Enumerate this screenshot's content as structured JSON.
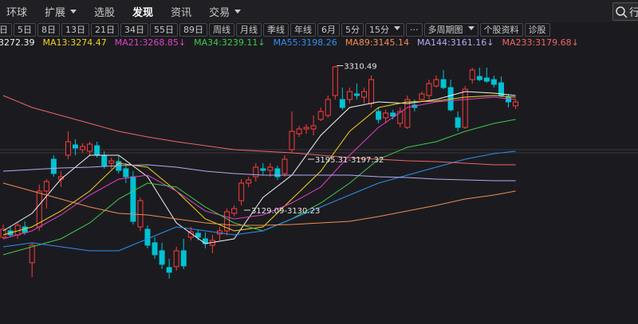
{
  "nav": {
    "items": [
      {
        "label": "环球"
      },
      {
        "label": "扩展",
        "dropdown": true
      },
      {
        "label": "选股"
      },
      {
        "label": "发现",
        "active": true
      },
      {
        "label": "资讯"
      },
      {
        "label": "交易",
        "dropdown": true
      }
    ],
    "search": "行"
  },
  "toolbar": [
    {
      "label": "日"
    },
    {
      "label": "5日"
    },
    {
      "label": "8日"
    },
    {
      "label": "13日"
    },
    {
      "label": "21日"
    },
    {
      "label": "34日"
    },
    {
      "label": "55日"
    },
    {
      "label": "89日"
    },
    {
      "label": "周线"
    },
    {
      "label": "月线"
    },
    {
      "label": "季线"
    },
    {
      "label": "年线"
    },
    {
      "label": "6月"
    },
    {
      "label": "5分"
    },
    {
      "label": "15分",
      "dropdown": true
    },
    {
      "label": "···"
    },
    {
      "label": "多周期图",
      "dropdown": true
    },
    {
      "label": "个股资料"
    },
    {
      "label": "诊股"
    }
  ],
  "chart_data": {
    "type": "candlestick",
    "ylim": [
      2986,
      3329
    ],
    "up_color": "#ff3b3b",
    "down_color": "#00c2d4",
    "open": [
      3095,
      3103,
      3098,
      3108,
      3063,
      3108,
      3153,
      3193,
      3168,
      3198,
      3211,
      3205,
      3203,
      3210,
      3197,
      3188,
      3190,
      3181,
      3171,
      3108,
      3105,
      3088,
      3078,
      3057,
      3058,
      3078,
      3095,
      3100,
      3093,
      3085,
      3099,
      3103,
      3125,
      3141,
      3163,
      3171,
      3181,
      3179,
      3181,
      3175,
      3205,
      3225,
      3231,
      3231,
      3243,
      3248,
      3273,
      3268,
      3268,
      3275,
      3271,
      3263,
      3253,
      3245,
      3251,
      3238,
      3233,
      3261,
      3268,
      3273,
      3285,
      3293,
      3283,
      3245,
      3233,
      3293,
      3297,
      3295,
      3293,
      3289,
      3271,
      3260
    ],
    "high": [
      3111,
      3108,
      3113,
      3115,
      3088,
      3161,
      3168,
      3198,
      3178,
      3228,
      3218,
      3213,
      3215,
      3215,
      3203,
      3195,
      3198,
      3188,
      3178,
      3145,
      3110,
      3095,
      3088,
      3068,
      3083,
      3093,
      3108,
      3105,
      3101,
      3098,
      3108,
      3131,
      3135,
      3168,
      3171,
      3188,
      3188,
      3188,
      3185,
      3198,
      3253,
      3235,
      3237,
      3248,
      3258,
      3273,
      3310.49,
      3283,
      3283,
      3288,
      3283,
      3298,
      3258,
      3255,
      3255,
      3258,
      3273,
      3268,
      3278,
      3293,
      3298,
      3305,
      3293,
      3253,
      3285,
      3308,
      3308,
      3308,
      3298,
      3297,
      3275,
      3268
    ],
    "low": [
      3093,
      3095,
      3093,
      3098,
      3045,
      3103,
      3131,
      3171,
      3158,
      3193,
      3198,
      3201,
      3197,
      3195,
      3181,
      3181,
      3175,
      3163,
      3111,
      3103,
      3081,
      3068,
      3055,
      3043,
      3053,
      3055,
      3091,
      3091,
      3081,
      3075,
      3091,
      3097,
      3121,
      3135,
      3158,
      3165,
      3173,
      3171,
      3167,
      3171,
      3201,
      3221,
      3225,
      3223,
      3241,
      3245,
      3268,
      3255,
      3263,
      3268,
      3263,
      3258,
      3238,
      3238,
      3243,
      3233,
      3231,
      3253,
      3265,
      3268,
      3283,
      3281,
      3253,
      3228,
      3231,
      3288,
      3291,
      3289,
      3283,
      3271,
      3258,
      3256
    ],
    "close": [
      3105,
      3098,
      3110,
      3101,
      3085,
      3153,
      3165,
      3175,
      3171,
      3215,
      3207,
      3209,
      3212,
      3199,
      3185,
      3191,
      3179,
      3171,
      3115,
      3141,
      3085,
      3073,
      3061,
      3051,
      3078,
      3059,
      3102,
      3095,
      3087,
      3091,
      3103,
      3127,
      3131,
      3163,
      3167,
      3183,
      3179,
      3183,
      3171,
      3193,
      3228,
      3231,
      3233,
      3235,
      3253,
      3268,
      3309,
      3258,
      3278,
      3273,
      3278,
      3293,
      3243,
      3251,
      3247,
      3253,
      3268,
      3258,
      3275,
      3288,
      3293,
      3283,
      3255,
      3233,
      3281,
      3305,
      3293,
      3291,
      3287,
      3273,
      3265,
      3265
    ],
    "series": [
      {
        "name": "3272.39",
        "color": "#f2f2f2",
        "x": [
          0,
          4,
          8,
          12,
          16,
          20,
          24,
          28,
          32,
          36,
          40,
          44,
          48,
          52,
          56,
          60,
          64,
          68,
          71
        ],
        "values": [
          3103,
          3125,
          3168,
          3198,
          3198,
          3171,
          3113,
          3087,
          3093,
          3145,
          3173,
          3223,
          3258,
          3265,
          3263,
          3268,
          3278,
          3276,
          3273
        ]
      },
      {
        "name": "MA13:3274.47",
        "color": "#f2d21c",
        "x": [
          0,
          4,
          8,
          12,
          16,
          20,
          24,
          28,
          32,
          36,
          40,
          44,
          48,
          52,
          56,
          60,
          64,
          68,
          71
        ],
        "values": [
          3098,
          3108,
          3128,
          3153,
          3188,
          3183,
          3153,
          3118,
          3103,
          3108,
          3143,
          3178,
          3228,
          3258,
          3265,
          3266,
          3271,
          3273,
          3271
        ]
      },
      {
        "name": "MA21:3268.85↓",
        "color": "#e23fc4",
        "x": [
          0,
          4,
          8,
          12,
          16,
          20,
          24,
          28,
          32,
          36,
          40,
          44,
          48,
          52,
          56,
          60,
          64,
          68,
          71
        ],
        "values": [
          3093,
          3103,
          3123,
          3148,
          3168,
          3173,
          3153,
          3128,
          3118,
          3123,
          3138,
          3158,
          3198,
          3233,
          3258,
          3265,
          3268,
          3271,
          3268
        ]
      },
      {
        "name": "MA34:3239.11↓",
        "color": "#3ec94c",
        "x": [
          0,
          4,
          8,
          12,
          16,
          20,
          24,
          28,
          32,
          36,
          40,
          44,
          48,
          52,
          56,
          60,
          64,
          68,
          71
        ],
        "values": [
          3073,
          3083,
          3093,
          3113,
          3143,
          3163,
          3158,
          3133,
          3113,
          3103,
          3118,
          3138,
          3163,
          3193,
          3208,
          3215,
          3228,
          3238,
          3243
        ]
      },
      {
        "name": "MA55:3198.26",
        "color": "#2f8ff0",
        "x": [
          0,
          4,
          8,
          12,
          16,
          20,
          24,
          28,
          32,
          36,
          40,
          44,
          48,
          52,
          56,
          60,
          64,
          68,
          71
        ],
        "values": [
          3083,
          3088,
          3083,
          3078,
          3078,
          3093,
          3108,
          3103,
          3098,
          3103,
          3118,
          3133,
          3148,
          3163,
          3173,
          3183,
          3193,
          3200,
          3203
        ]
      },
      {
        "name": "MA89:3145.14",
        "color": "#f28c52",
        "x": [
          0,
          4,
          8,
          12,
          16,
          20,
          24,
          28,
          32,
          36,
          40,
          44,
          48,
          52,
          56,
          60,
          64,
          68,
          71
        ],
        "values": [
          3163,
          3153,
          3143,
          3133,
          3125,
          3123,
          3118,
          3113,
          3110,
          3110,
          3111,
          3113,
          3115,
          3121,
          3128,
          3135,
          3143,
          3148,
          3153
        ]
      },
      {
        "name": "MA144:3161.16↓",
        "color": "#b7a8f2",
        "x": [
          0,
          4,
          8,
          12,
          16,
          20,
          24,
          28,
          32,
          36,
          40,
          44,
          48,
          52,
          56,
          60,
          64,
          68,
          71
        ],
        "values": [
          3178,
          3180,
          3182,
          3183,
          3185,
          3186,
          3183,
          3178,
          3175,
          3173,
          3173,
          3173,
          3173,
          3171,
          3170,
          3168,
          3167,
          3166,
          3166
        ]
      },
      {
        "name": "MA233:3179.68↓",
        "color": "#f06464",
        "x": [
          0,
          4,
          8,
          12,
          16,
          20,
          24,
          28,
          32,
          36,
          40,
          44,
          48,
          52,
          56,
          60,
          64,
          68,
          71
        ],
        "values": [
          3273,
          3258,
          3248,
          3238,
          3228,
          3221,
          3215,
          3210,
          3205,
          3203,
          3201,
          3198,
          3195,
          3193,
          3191,
          3190,
          3188,
          3186,
          3186
        ]
      }
    ],
    "annotations": [
      "3310.49",
      "3195.31-3197.32",
      "3129.09-3130.23"
    ]
  }
}
